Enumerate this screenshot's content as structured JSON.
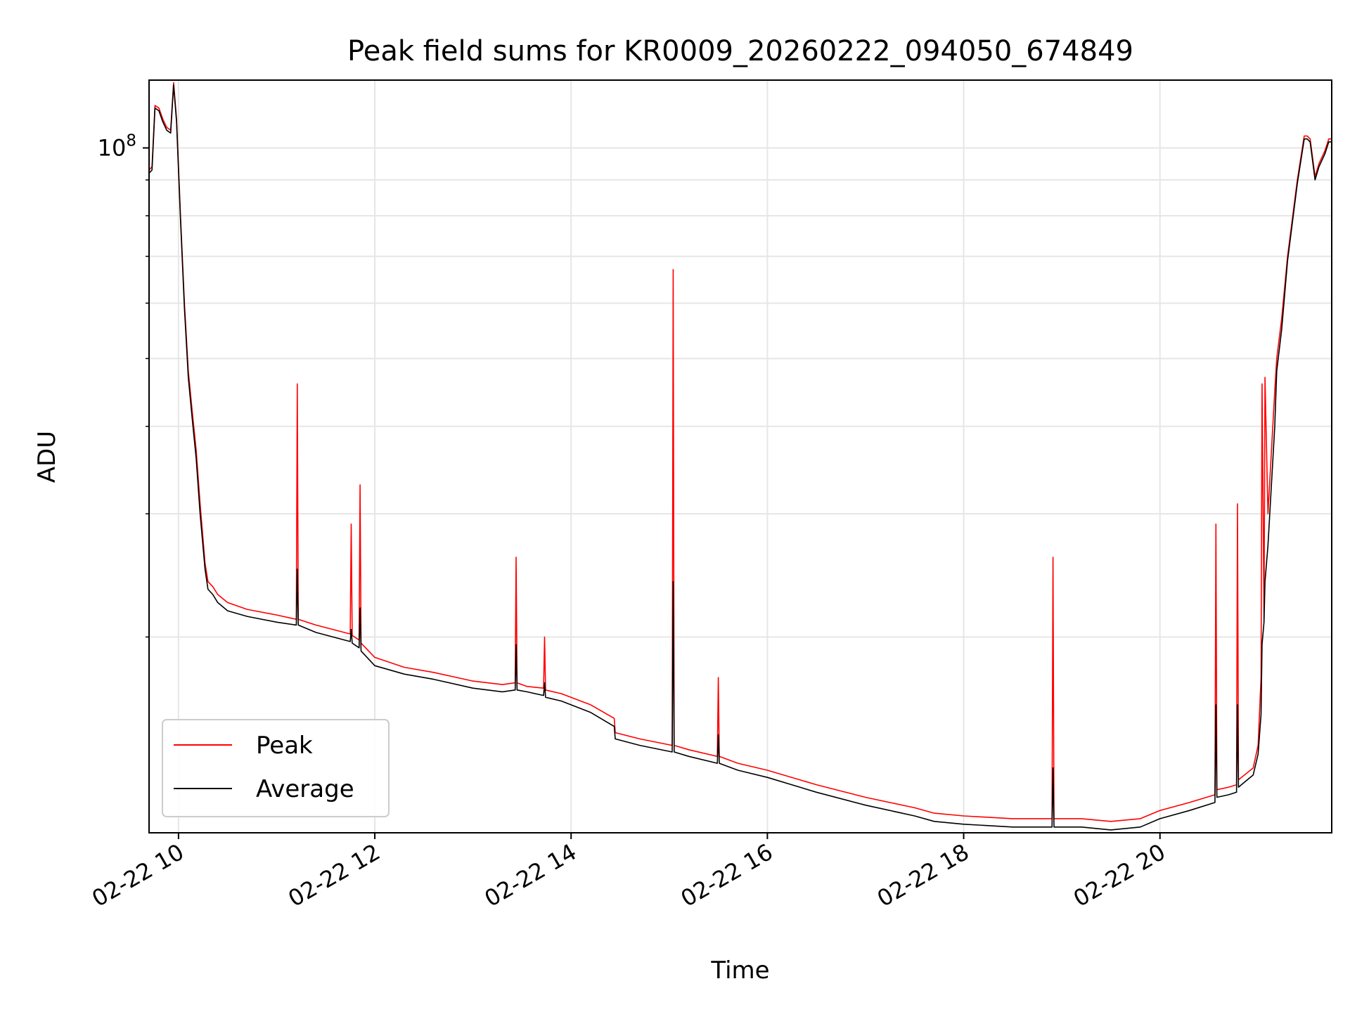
{
  "chart_data": {
    "type": "line",
    "title": "Peak field sums for KR0009_20260222_094050_674849",
    "xlabel": "Time",
    "ylabel": "ADU",
    "x_unit": "hours since 2026-02-22 00:00",
    "xlim": [
      9.7,
      21.75
    ],
    "ylim": [
      10500000,
      125000000
    ],
    "yscale": "log",
    "grid": true,
    "x_ticks": [
      {
        "value": 10,
        "label": "02-22 10"
      },
      {
        "value": 12,
        "label": "02-22 12"
      },
      {
        "value": 14,
        "label": "02-22 14"
      },
      {
        "value": 16,
        "label": "02-22 16"
      },
      {
        "value": 18,
        "label": "02-22 18"
      },
      {
        "value": 20,
        "label": "02-22 20"
      }
    ],
    "y_major_ticks": [
      {
        "value": 100000000,
        "base": "10",
        "exp": "8"
      }
    ],
    "y_minor_ticks": [
      20000000,
      30000000,
      40000000,
      50000000,
      60000000,
      70000000,
      80000000,
      90000000
    ],
    "legend": {
      "location": "lower-left",
      "entries": [
        {
          "label": "Peak",
          "color": "#ff0000"
        },
        {
          "label": "Average",
          "color": "#000000"
        }
      ]
    },
    "series": [
      {
        "name": "Peak",
        "color": "#ff0000",
        "x": [
          9.7,
          9.73,
          9.76,
          9.8,
          9.84,
          9.88,
          9.92,
          9.95,
          9.98,
          10.02,
          10.06,
          10.1,
          10.14,
          10.18,
          10.22,
          10.27,
          10.3,
          10.35,
          10.4,
          10.5,
          10.7,
          11.0,
          11.2,
          11.21,
          11.22,
          11.4,
          11.75,
          11.76,
          11.77,
          11.84,
          11.85,
          11.86,
          12.0,
          12.3,
          12.6,
          13.0,
          13.3,
          13.43,
          13.44,
          13.45,
          13.55,
          13.72,
          13.73,
          13.74,
          13.9,
          14.2,
          14.44,
          14.45,
          14.7,
          15.03,
          15.04,
          15.05,
          15.2,
          15.49,
          15.5,
          15.51,
          15.7,
          16.0,
          16.5,
          17.0,
          17.5,
          17.7,
          18.0,
          18.5,
          18.9,
          18.91,
          18.92,
          19.2,
          19.5,
          19.8,
          20.0,
          20.3,
          20.56,
          20.57,
          20.58,
          20.7,
          20.78,
          20.79,
          20.8,
          20.95,
          21.0,
          21.03,
          21.04,
          21.06,
          21.07,
          21.1,
          21.17,
          21.19,
          21.24,
          21.3,
          21.4,
          21.47,
          21.5,
          21.53,
          21.58,
          21.62,
          21.68,
          21.72,
          21.75
        ],
        "y": [
          93000000,
          94000000,
          115000000,
          114000000,
          110000000,
          107000000,
          106000000,
          124000000,
          110000000,
          80000000,
          60000000,
          48000000,
          42000000,
          37000000,
          31000000,
          25500000,
          24000000,
          23600000,
          23000000,
          22400000,
          21900000,
          21500000,
          21200000,
          46000000,
          21200000,
          20800000,
          20200000,
          29000000,
          20100000,
          19800000,
          33000000,
          19600000,
          18700000,
          18100000,
          17800000,
          17300000,
          17100000,
          17200000,
          26000000,
          17200000,
          17000000,
          16900000,
          20000000,
          16800000,
          16600000,
          16000000,
          15300000,
          14600000,
          14300000,
          14000000,
          67000000,
          14000000,
          13800000,
          13500000,
          17500000,
          13500000,
          13200000,
          12900000,
          12300000,
          11800000,
          11400000,
          11200000,
          11100000,
          11000000,
          11000000,
          26000000,
          11000000,
          11000000,
          10900000,
          11000000,
          11300000,
          11600000,
          11900000,
          29000000,
          12100000,
          12200000,
          12300000,
          31000000,
          12500000,
          13000000,
          14000000,
          17500000,
          46000000,
          21000000,
          47000000,
          30000000,
          45000000,
          50000000,
          57000000,
          70000000,
          90000000,
          104000000,
          104000000,
          103000000,
          91000000,
          95000000,
          99000000,
          103000000,
          103000000
        ]
      },
      {
        "name": "Average",
        "color": "#000000",
        "x": [
          9.7,
          9.73,
          9.76,
          9.8,
          9.84,
          9.88,
          9.92,
          9.95,
          9.98,
          10.02,
          10.06,
          10.1,
          10.14,
          10.18,
          10.22,
          10.27,
          10.3,
          10.35,
          10.4,
          10.5,
          10.7,
          11.0,
          11.2,
          11.21,
          11.22,
          11.4,
          11.75,
          11.76,
          11.77,
          11.84,
          11.85,
          11.86,
          12.0,
          12.3,
          12.6,
          13.0,
          13.3,
          13.43,
          13.44,
          13.45,
          13.55,
          13.72,
          13.73,
          13.74,
          13.9,
          14.2,
          14.44,
          14.45,
          14.7,
          15.03,
          15.04,
          15.05,
          15.2,
          15.49,
          15.5,
          15.51,
          15.7,
          16.0,
          16.5,
          17.0,
          17.5,
          17.7,
          18.0,
          18.5,
          18.9,
          18.91,
          18.92,
          19.2,
          19.5,
          19.8,
          20.0,
          20.3,
          20.56,
          20.57,
          20.58,
          20.7,
          20.78,
          20.79,
          20.8,
          20.95,
          21.0,
          21.03,
          21.04,
          21.06,
          21.07,
          21.1,
          21.17,
          21.19,
          21.24,
          21.3,
          21.4,
          21.47,
          21.5,
          21.53,
          21.58,
          21.62,
          21.68,
          21.72,
          21.75
        ],
        "y": [
          92000000,
          93000000,
          114000000,
          113000000,
          109000000,
          106000000,
          105000000,
          123000000,
          109000000,
          79000000,
          59000000,
          47000000,
          41000000,
          36000000,
          30000000,
          25000000,
          23400000,
          23000000,
          22400000,
          21800000,
          21400000,
          21000000,
          20800000,
          25000000,
          20800000,
          20300000,
          19700000,
          20500000,
          19600000,
          19300000,
          22000000,
          19100000,
          18200000,
          17700000,
          17400000,
          16900000,
          16700000,
          16800000,
          19500000,
          16800000,
          16700000,
          16500000,
          17200000,
          16400000,
          16200000,
          15600000,
          14900000,
          14300000,
          14000000,
          13700000,
          24000000,
          13700000,
          13500000,
          13200000,
          14500000,
          13200000,
          12900000,
          12600000,
          12000000,
          11500000,
          11100000,
          10900000,
          10800000,
          10700000,
          10700000,
          13000000,
          10700000,
          10700000,
          10600000,
          10700000,
          11000000,
          11300000,
          11600000,
          16000000,
          11800000,
          11900000,
          12000000,
          16000000,
          12200000,
          12700000,
          13600000,
          15500000,
          19500000,
          21000000,
          24000000,
          27000000,
          40000000,
          48000000,
          55000000,
          69000000,
          89000000,
          103000000,
          103000000,
          102000000,
          90000000,
          94000000,
          98000000,
          102000000,
          102000000
        ]
      }
    ]
  }
}
